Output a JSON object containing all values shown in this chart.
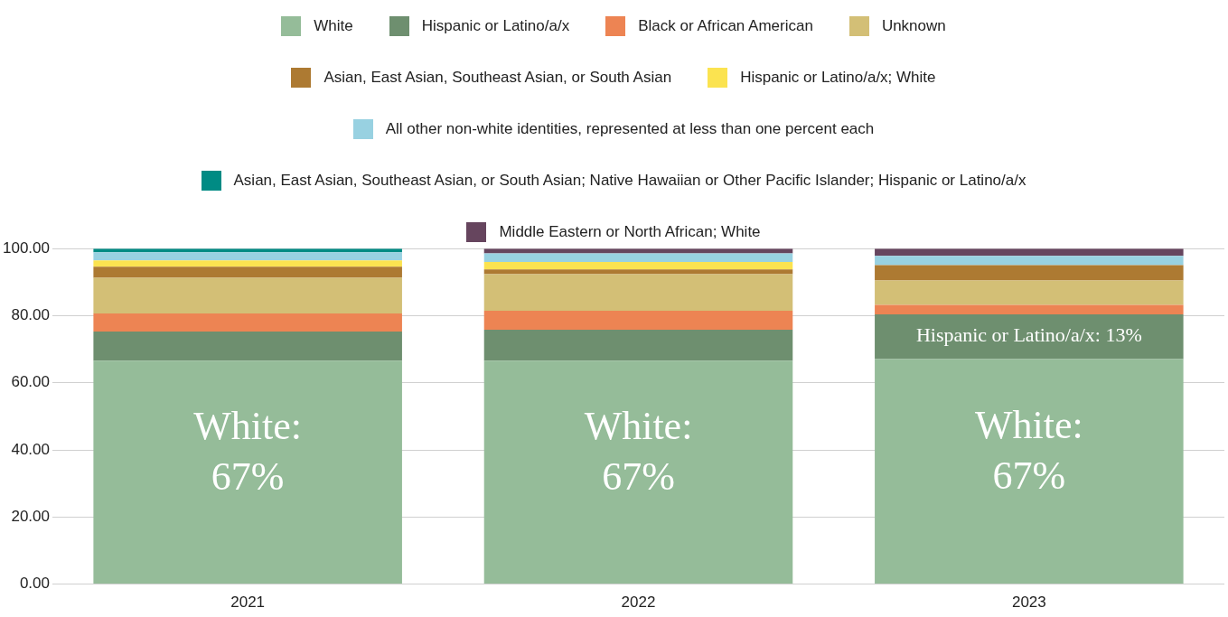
{
  "chart_data": {
    "type": "bar",
    "stacked": true,
    "legend": "top",
    "grid": "y",
    "categories": [
      "2021",
      "2022",
      "2023"
    ],
    "ylim": [
      0,
      100
    ],
    "yticks": [
      {
        "value": 0,
        "label": "0.00"
      },
      {
        "value": 20,
        "label": "20.00"
      },
      {
        "value": 40,
        "label": "40.00"
      },
      {
        "value": 60,
        "label": "60.00"
      },
      {
        "value": 80,
        "label": "80.00"
      },
      {
        "value": 100,
        "label": "100.00"
      }
    ],
    "series": [
      {
        "name": "White",
        "color": "#95bc99",
        "values": [
          66.6,
          66.6,
          67.1
        ],
        "value_labels": [
          "White: 67%",
          "White: 67%",
          "White: 67%"
        ]
      },
      {
        "name": "Hispanic or Latino/a/x",
        "color": "#6e8f6f",
        "values": [
          8.7,
          9.2,
          13.3
        ],
        "value_labels": [
          null,
          null,
          "Hispanic or Latino/a/x: 13%"
        ]
      },
      {
        "name": "Black or African American",
        "color": "#ed8453",
        "values": [
          5.4,
          5.7,
          2.8
        ]
      },
      {
        "name": "Unknown",
        "color": "#d3bf76",
        "values": [
          10.6,
          10.9,
          7.3
        ]
      },
      {
        "name": "Asian, East Asian, Southeast Asian, or South Asian",
        "color": "#ad7a32",
        "values": [
          3.3,
          1.4,
          4.6
        ]
      },
      {
        "name": "Hispanic or Latino/a/x; White",
        "color": "#fbe350",
        "values": [
          1.9,
          2.2,
          0
        ]
      },
      {
        "name": "All other non-white identities, represented at less than one percent each",
        "color": "#98d1e1",
        "values": [
          2.4,
          2.6,
          2.7
        ]
      },
      {
        "name": "Asian, East Asian, Southeast Asian, or South Asian; Native Hawaiian or Other Pacific Islander; Hispanic or Latino/a/x",
        "color": "#008b84",
        "values": [
          1.1,
          0,
          0
        ]
      },
      {
        "name": "Middle Eastern or North African; White",
        "color": "#66455e",
        "values": [
          0,
          1.4,
          2.2
        ]
      }
    ]
  }
}
